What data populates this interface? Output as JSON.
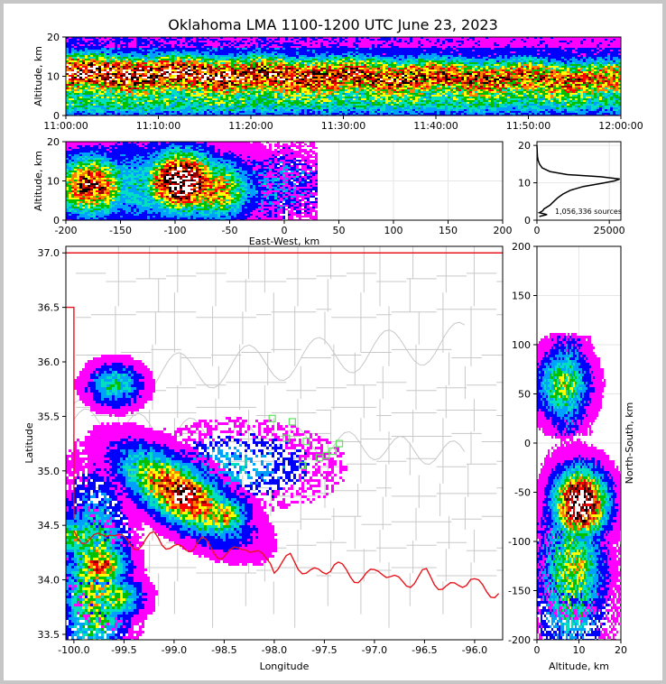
{
  "title": "Oklahoma LMA 1100-1200 UTC June 23, 2023",
  "colors": {
    "state_border": "#e8141b",
    "county_lines": "#c8c8c8",
    "stations": "#5ce65c",
    "grid": "#e6e6e6"
  },
  "colormap": [
    "#ff00ff",
    "#0000ff",
    "#00a0ff",
    "#00e0c0",
    "#00c000",
    "#ffff00",
    "#ff8000",
    "#ff0000",
    "#900000",
    "#000000",
    "#ffffff"
  ],
  "chart_data": [
    {
      "id": "time_height",
      "type": "heatmap",
      "xlabel": "",
      "ylabel": "Altitude, km",
      "x_tick_labels": [
        "11:00:00",
        "11:10:00",
        "11:20:00",
        "11:30:00",
        "11:40:00",
        "11:50:00",
        "12:00:00"
      ],
      "xlim": [
        "11:00:00",
        "12:00:00"
      ],
      "ylim": [
        0,
        20
      ],
      "y_ticks": [
        0,
        10,
        20
      ],
      "peak_altitude_km": 11
    },
    {
      "id": "east_west_height",
      "type": "heatmap",
      "xlabel": "East-West, km",
      "ylabel": "Altitude, km",
      "xlim": [
        -200,
        200
      ],
      "ylim": [
        0,
        20
      ],
      "x_ticks": [
        -200,
        -150,
        -100,
        -50,
        0,
        50,
        100,
        150,
        200
      ],
      "y_ticks": [
        0,
        10,
        20
      ],
      "cores": [
        {
          "x_km": -95,
          "alt_km": 10,
          "strength": 1.0
        },
        {
          "x_km": -178,
          "alt_km": 9,
          "strength": 0.75
        },
        {
          "x_km": -65,
          "alt_km": 8,
          "strength": 0.6
        }
      ]
    },
    {
      "id": "altitude_histogram",
      "type": "line",
      "xlabel": "",
      "ylabel": "",
      "xlim": [
        0,
        29000
      ],
      "ylim": [
        0,
        21
      ],
      "x_ticks": [
        0,
        25000
      ],
      "y_ticks": [
        0,
        10,
        20
      ],
      "annotation": "1,056,336 sources",
      "altitude_km": [
        1.0,
        1.5,
        2.0,
        2.5,
        3.0,
        4.0,
        5.0,
        6.0,
        7.0,
        8.0,
        9.0,
        9.8,
        10.5,
        11.0,
        11.6,
        12.2,
        13.0,
        14.0,
        15.0,
        16.0,
        17.0,
        18.0,
        19.0,
        20.0
      ],
      "counts": [
        800,
        3500,
        800,
        2000,
        2400,
        4500,
        5800,
        7200,
        9000,
        11500,
        16000,
        22000,
        26800,
        28600,
        22000,
        10500,
        4500,
        1800,
        900,
        400,
        200,
        100,
        50,
        0
      ]
    },
    {
      "id": "plan_view",
      "type": "heatmap",
      "xlabel": "Longitude",
      "ylabel": "Latitude",
      "xlim": [
        -100.08,
        -95.72
      ],
      "ylim": [
        33.45,
        37.06
      ],
      "x_ticks": [
        -100.0,
        -99.5,
        -99.0,
        -98.5,
        -98.0,
        -97.5,
        -97.0,
        -96.5,
        -96.0
      ],
      "y_ticks": [
        33.5,
        34.0,
        34.5,
        35.0,
        35.5,
        36.0,
        36.5,
        37.0
      ],
      "stations": [
        [
          -99.42,
          34.98
        ],
        [
          -98.02,
          35.48
        ],
        [
          -97.82,
          35.45
        ],
        [
          -97.88,
          35.3
        ],
        [
          -97.68,
          35.27
        ],
        [
          -97.35,
          35.25
        ],
        [
          -97.42,
          35.18
        ],
        [
          -97.48,
          35.14
        ],
        [
          -97.55,
          35.12
        ],
        [
          -97.72,
          35.05
        ]
      ],
      "cores": [
        {
          "lon": -98.92,
          "lat": 34.78,
          "strength": 1.0
        },
        {
          "lon": -98.55,
          "lat": 34.6,
          "strength": 0.55
        },
        {
          "lon": -99.75,
          "lat": 34.15,
          "strength": 0.65
        },
        {
          "lon": -99.6,
          "lat": 33.85,
          "strength": 0.45
        },
        {
          "lon": -99.98,
          "lat": 34.4,
          "strength": 0.45
        },
        {
          "lon": -99.6,
          "lat": 35.8,
          "strength": 0.35
        }
      ]
    },
    {
      "id": "north_south_height",
      "type": "heatmap",
      "xlabel": "Altitude, km",
      "ylabel": "North-South, km",
      "xlim": [
        0,
        20
      ],
      "ylim": [
        -200,
        200
      ],
      "x_ticks": [
        0,
        10,
        20
      ],
      "y_ticks": [
        -200,
        -150,
        -100,
        -50,
        0,
        50,
        100,
        150,
        200
      ],
      "cores": [
        {
          "y_km": -60,
          "alt_km": 10,
          "strength": 1.0
        },
        {
          "y_km": -125,
          "alt_km": 9,
          "strength": 0.5
        },
        {
          "y_km": 60,
          "alt_km": 6,
          "strength": 0.45
        }
      ]
    }
  ]
}
